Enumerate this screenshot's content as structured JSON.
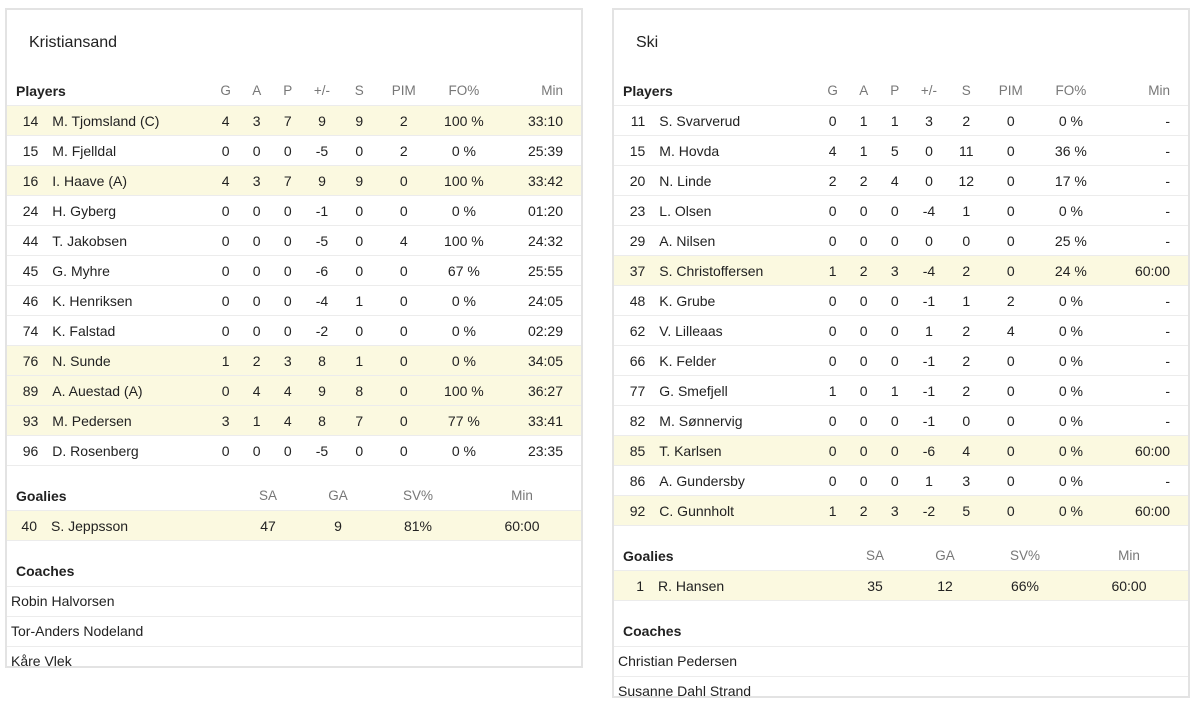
{
  "column_headers": {
    "players": "Players",
    "g": "G",
    "a": "A",
    "p": "P",
    "pm": "+/-",
    "s": "S",
    "pim": "PIM",
    "fo": "FO%",
    "min": "Min",
    "goalies": "Goalies",
    "sa": "SA",
    "ga": "GA",
    "sv": "SV%",
    "gmin": "Min",
    "coaches": "Coaches"
  },
  "teams": [
    {
      "name": "Kristiansand",
      "players": [
        {
          "num": "14",
          "name": "M. Tjomsland (C)",
          "g": "4",
          "a": "3",
          "p": "7",
          "pm": "9",
          "s": "9",
          "pim": "2",
          "fo": "100 %",
          "min": "33:10",
          "hl": true
        },
        {
          "num": "15",
          "name": "M. Fjelldal",
          "g": "0",
          "a": "0",
          "p": "0",
          "pm": "-5",
          "s": "0",
          "pim": "2",
          "fo": "0 %",
          "min": "25:39",
          "hl": false
        },
        {
          "num": "16",
          "name": "I. Haave (A)",
          "g": "4",
          "a": "3",
          "p": "7",
          "pm": "9",
          "s": "9",
          "pim": "0",
          "fo": "100 %",
          "min": "33:42",
          "hl": true
        },
        {
          "num": "24",
          "name": "H. Gyberg",
          "g": "0",
          "a": "0",
          "p": "0",
          "pm": "-1",
          "s": "0",
          "pim": "0",
          "fo": "0 %",
          "min": "01:20",
          "hl": false
        },
        {
          "num": "44",
          "name": "T. Jakobsen",
          "g": "0",
          "a": "0",
          "p": "0",
          "pm": "-5",
          "s": "0",
          "pim": "4",
          "fo": "100 %",
          "min": "24:32",
          "hl": false
        },
        {
          "num": "45",
          "name": "G. Myhre",
          "g": "0",
          "a": "0",
          "p": "0",
          "pm": "-6",
          "s": "0",
          "pim": "0",
          "fo": "67 %",
          "min": "25:55",
          "hl": false
        },
        {
          "num": "46",
          "name": "K. Henriksen",
          "g": "0",
          "a": "0",
          "p": "0",
          "pm": "-4",
          "s": "1",
          "pim": "0",
          "fo": "0 %",
          "min": "24:05",
          "hl": false
        },
        {
          "num": "74",
          "name": "K. Falstad",
          "g": "0",
          "a": "0",
          "p": "0",
          "pm": "-2",
          "s": "0",
          "pim": "0",
          "fo": "0 %",
          "min": "02:29",
          "hl": false
        },
        {
          "num": "76",
          "name": "N. Sunde",
          "g": "1",
          "a": "2",
          "p": "3",
          "pm": "8",
          "s": "1",
          "pim": "0",
          "fo": "0 %",
          "min": "34:05",
          "hl": true
        },
        {
          "num": "89",
          "name": "A. Auestad (A)",
          "g": "0",
          "a": "4",
          "p": "4",
          "pm": "9",
          "s": "8",
          "pim": "0",
          "fo": "100 %",
          "min": "36:27",
          "hl": true
        },
        {
          "num": "93",
          "name": "M. Pedersen",
          "g": "3",
          "a": "1",
          "p": "4",
          "pm": "8",
          "s": "7",
          "pim": "0",
          "fo": "77 %",
          "min": "33:41",
          "hl": true
        },
        {
          "num": "96",
          "name": "D. Rosenberg",
          "g": "0",
          "a": "0",
          "p": "0",
          "pm": "-5",
          "s": "0",
          "pim": "0",
          "fo": "0 %",
          "min": "23:35",
          "hl": false
        }
      ],
      "goalies": [
        {
          "num": "40",
          "name": "S. Jeppsson",
          "sa": "47",
          "ga": "9",
          "sv": "81%",
          "min": "60:00",
          "hl": true
        }
      ],
      "coaches": [
        "Robin Halvorsen",
        "Tor-Anders Nodeland",
        "Kåre Vlek"
      ]
    },
    {
      "name": "Ski",
      "players": [
        {
          "num": "11",
          "name": "S. Svarverud",
          "g": "0",
          "a": "1",
          "p": "1",
          "pm": "3",
          "s": "2",
          "pim": "0",
          "fo": "0 %",
          "min": "-",
          "hl": false
        },
        {
          "num": "15",
          "name": "M. Hovda",
          "g": "4",
          "a": "1",
          "p": "5",
          "pm": "0",
          "s": "11",
          "pim": "0",
          "fo": "36 %",
          "min": "-",
          "hl": false
        },
        {
          "num": "20",
          "name": "N. Linde",
          "g": "2",
          "a": "2",
          "p": "4",
          "pm": "0",
          "s": "12",
          "pim": "0",
          "fo": "17 %",
          "min": "-",
          "hl": false
        },
        {
          "num": "23",
          "name": "L. Olsen",
          "g": "0",
          "a": "0",
          "p": "0",
          "pm": "-4",
          "s": "1",
          "pim": "0",
          "fo": "0 %",
          "min": "-",
          "hl": false
        },
        {
          "num": "29",
          "name": "A. Nilsen",
          "g": "0",
          "a": "0",
          "p": "0",
          "pm": "0",
          "s": "0",
          "pim": "0",
          "fo": "25 %",
          "min": "-",
          "hl": false
        },
        {
          "num": "37",
          "name": "S. Christoffersen",
          "g": "1",
          "a": "2",
          "p": "3",
          "pm": "-4",
          "s": "2",
          "pim": "0",
          "fo": "24 %",
          "min": "60:00",
          "hl": true
        },
        {
          "num": "48",
          "name": "K. Grube",
          "g": "0",
          "a": "0",
          "p": "0",
          "pm": "-1",
          "s": "1",
          "pim": "2",
          "fo": "0 %",
          "min": "-",
          "hl": false
        },
        {
          "num": "62",
          "name": "V. Lilleaas",
          "g": "0",
          "a": "0",
          "p": "0",
          "pm": "1",
          "s": "2",
          "pim": "4",
          "fo": "0 %",
          "min": "-",
          "hl": false
        },
        {
          "num": "66",
          "name": "K. Felder",
          "g": "0",
          "a": "0",
          "p": "0",
          "pm": "-1",
          "s": "2",
          "pim": "0",
          "fo": "0 %",
          "min": "-",
          "hl": false
        },
        {
          "num": "77",
          "name": "G. Smefjell",
          "g": "1",
          "a": "0",
          "p": "1",
          "pm": "-1",
          "s": "2",
          "pim": "0",
          "fo": "0 %",
          "min": "-",
          "hl": false
        },
        {
          "num": "82",
          "name": "M. Sønnervig",
          "g": "0",
          "a": "0",
          "p": "0",
          "pm": "-1",
          "s": "0",
          "pim": "0",
          "fo": "0 %",
          "min": "-",
          "hl": false
        },
        {
          "num": "85",
          "name": "T. Karlsen",
          "g": "0",
          "a": "0",
          "p": "0",
          "pm": "-6",
          "s": "4",
          "pim": "0",
          "fo": "0 %",
          "min": "60:00",
          "hl": true
        },
        {
          "num": "86",
          "name": "A. Gundersby",
          "g": "0",
          "a": "0",
          "p": "0",
          "pm": "1",
          "s": "3",
          "pim": "0",
          "fo": "0 %",
          "min": "-",
          "hl": false
        },
        {
          "num": "92",
          "name": "C. Gunnholt",
          "g": "1",
          "a": "2",
          "p": "3",
          "pm": "-2",
          "s": "5",
          "pim": "0",
          "fo": "0 %",
          "min": "60:00",
          "hl": true
        }
      ],
      "goalies": [
        {
          "num": "1",
          "name": "R. Hansen",
          "sa": "35",
          "ga": "12",
          "sv": "66%",
          "min": "60:00",
          "hl": true
        }
      ],
      "coaches": [
        "Christian Pedersen",
        "Susanne Dahl Strand"
      ]
    }
  ]
}
